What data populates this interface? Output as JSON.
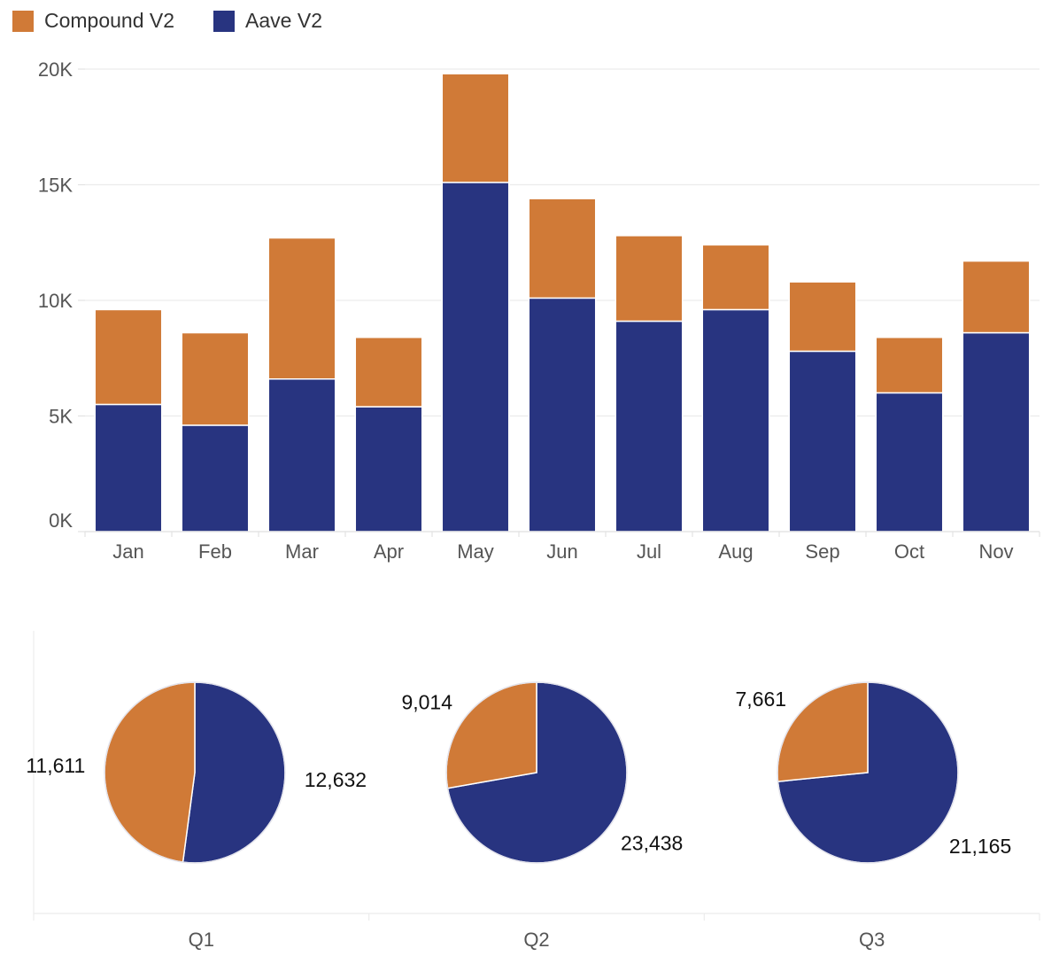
{
  "colors": {
    "compound": "#D07A37",
    "aave": "#283480",
    "grid": "#ECECEC",
    "axis": "#E2E2E2"
  },
  "legend": [
    {
      "label": "Compound V2",
      "color": "#D07A37"
    },
    {
      "label": "Aave V2",
      "color": "#283480"
    }
  ],
  "chart_data": [
    {
      "type": "bar",
      "stacked": true,
      "categories": [
        "Jan",
        "Feb",
        "Mar",
        "Apr",
        "May",
        "Jun",
        "Jul",
        "Aug",
        "Sep",
        "Oct",
        "Nov"
      ],
      "series": [
        {
          "name": "Aave V2",
          "values": [
            5500,
            4600,
            6600,
            5400,
            15100,
            10100,
            9100,
            9600,
            7800,
            6000,
            8600
          ]
        },
        {
          "name": "Compound V2",
          "values": [
            4100,
            4000,
            6100,
            3000,
            4700,
            4300,
            3700,
            2800,
            3000,
            2400,
            3100
          ]
        }
      ],
      "ylim": [
        0,
        20000
      ],
      "yticks": [
        {
          "value": 0,
          "label": "0K"
        },
        {
          "value": 5000,
          "label": "5K"
        },
        {
          "value": 10000,
          "label": "10K"
        },
        {
          "value": 15000,
          "label": "15K"
        },
        {
          "value": 20000,
          "label": "20K"
        }
      ],
      "grid": true,
      "legend_position": "top-left"
    },
    {
      "type": "pie",
      "categories": [
        "Q1",
        "Q2",
        "Q3"
      ],
      "pies": [
        {
          "label": "Q1",
          "slices": [
            {
              "name": "Aave V2",
              "value": 12632,
              "label": "12,632"
            },
            {
              "name": "Compound V2",
              "value": 11611,
              "label": "11,611"
            }
          ]
        },
        {
          "label": "Q2",
          "slices": [
            {
              "name": "Aave V2",
              "value": 23438,
              "label": "23,438"
            },
            {
              "name": "Compound V2",
              "value": 9014,
              "label": "9,014"
            }
          ]
        },
        {
          "label": "Q3",
          "slices": [
            {
              "name": "Aave V2",
              "value": 21165,
              "label": "21,165"
            },
            {
              "name": "Compound V2",
              "value": 7661,
              "label": "7,661"
            }
          ]
        }
      ]
    }
  ]
}
